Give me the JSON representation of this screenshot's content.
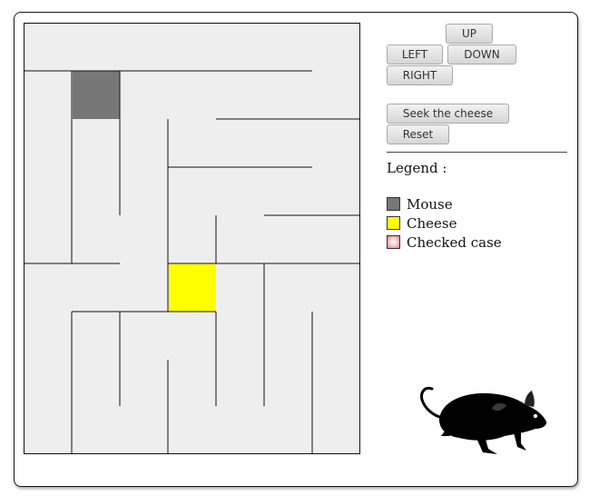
{
  "controls": {
    "up": "UP",
    "left": "LEFT",
    "down": "DOWN",
    "right": "RIGHT",
    "seek": "Seek the cheese",
    "reset": "Reset"
  },
  "legend": {
    "title": "Legend :",
    "items": [
      {
        "label": "Mouse",
        "color": "#777777"
      },
      {
        "label": "Cheese",
        "color": "#ffff00"
      },
      {
        "label": "Checked case",
        "color": "#f4c2c2"
      }
    ]
  },
  "maze": {
    "cols": 7,
    "rows": 9,
    "mouse": {
      "col": 1,
      "row": 1
    },
    "cheese": {
      "col": 3,
      "row": 5
    },
    "colors": {
      "floor": "#eeeeee",
      "wall": "#111111",
      "mouse": "#777777",
      "cheese": "#ffff00"
    }
  }
}
